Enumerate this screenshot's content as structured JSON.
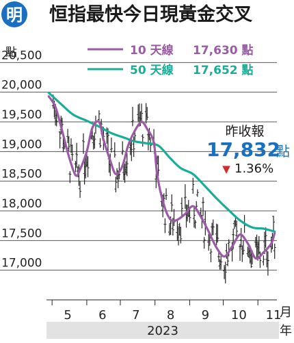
{
  "logo_text": "明",
  "title": "恒指最快今日現黃金交叉",
  "colors": {
    "brand_blue": "#1a6fc0",
    "ma10": "#9b5aa6",
    "ma50": "#19ad98",
    "price_bar": "#222222",
    "down": "#d42a2a",
    "year_band": "#e2e2e2"
  },
  "chart_data": {
    "type": "line",
    "ylabel": "點",
    "xlabel": "月",
    "xlabel2": "年",
    "year_label": "2023",
    "ylim": [
      16500,
      21000
    ],
    "yticks": [
      17000,
      17500,
      18000,
      18500,
      19000,
      19500,
      20000,
      20500
    ],
    "ytick_labels": [
      "17,000",
      "17,500",
      "18,000",
      "18,500",
      "19,000",
      "19,500",
      "20,000",
      "20,500"
    ],
    "month_ticks": [
      "5",
      "6",
      "7",
      "8",
      "9",
      "10",
      "11"
    ],
    "legend": [
      {
        "label": "10 天線",
        "value": "17,630 點"
      },
      {
        "label": "50 天線",
        "value": "17,652 點"
      }
    ],
    "annotation": {
      "heading": "昨收報",
      "close": "17,832",
      "unit": "點",
      "change_arrow": "▼",
      "change": "1.36%"
    },
    "series": [
      {
        "name": "10 天線",
        "x": [
          "2023-04-28",
          "2023-05-04",
          "2023-05-10",
          "2023-05-16",
          "2023-05-22",
          "2023-05-26",
          "2023-06-01",
          "2023-06-06",
          "2023-06-12",
          "2023-06-16",
          "2023-06-22",
          "2023-06-27",
          "2023-07-03",
          "2023-07-08",
          "2023-07-14",
          "2023-07-20",
          "2023-07-25",
          "2023-07-31",
          "2023-08-03",
          "2023-08-09",
          "2023-08-15",
          "2023-08-21",
          "2023-08-28",
          "2023-09-04",
          "2023-09-11",
          "2023-09-18",
          "2023-09-25",
          "2023-10-02",
          "2023-10-09",
          "2023-10-16",
          "2023-10-23",
          "2023-10-30",
          "2023-11-06",
          "2023-11-13",
          "2023-11-16"
        ],
        "values": [
          19930,
          19750,
          19350,
          18920,
          18600,
          18700,
          19000,
          19400,
          19500,
          19200,
          18850,
          18620,
          18760,
          19100,
          19350,
          19500,
          19380,
          19150,
          18600,
          18100,
          17850,
          17850,
          17950,
          18080,
          17900,
          17650,
          17380,
          17230,
          17400,
          17600,
          17450,
          17200,
          17300,
          17450,
          17630
        ]
      },
      {
        "name": "50 天線",
        "x": [
          "2023-04-28",
          "2023-05-09",
          "2023-05-20",
          "2023-06-01",
          "2023-06-12",
          "2023-06-23",
          "2023-07-05",
          "2023-07-14",
          "2023-07-24",
          "2023-08-04",
          "2023-08-14",
          "2023-08-24",
          "2023-09-04",
          "2023-09-14",
          "2023-09-25",
          "2023-10-06",
          "2023-10-16",
          "2023-10-27",
          "2023-11-06",
          "2023-11-16"
        ],
        "values": [
          19990,
          19800,
          19620,
          19520,
          19420,
          19310,
          19230,
          19170,
          19140,
          19100,
          18900,
          18720,
          18620,
          18430,
          18210,
          18010,
          17840,
          17720,
          17700,
          17652
        ]
      }
    ]
  }
}
